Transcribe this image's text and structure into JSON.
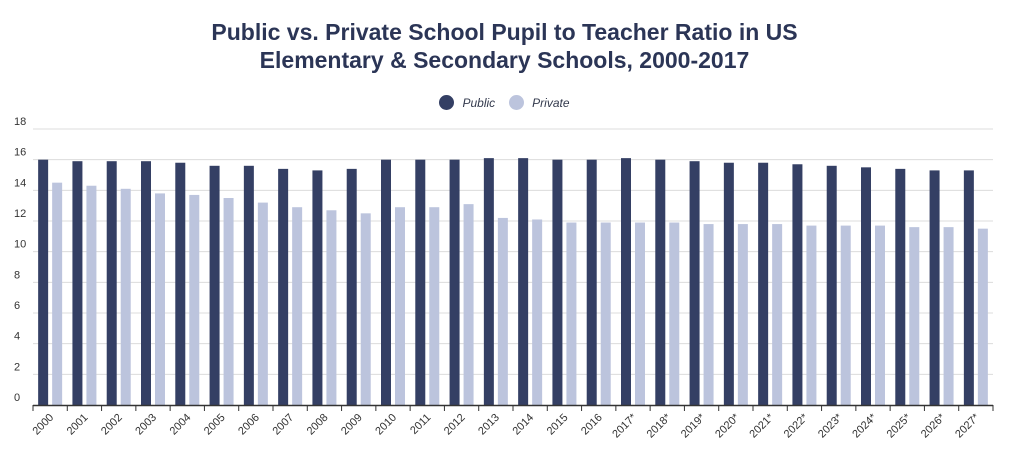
{
  "chart_data": {
    "type": "bar",
    "title_line1": "Public vs. Private School Pupil to Teacher Ratio in US",
    "title_line2": "Elementary & Secondary Schools, 2000-2017",
    "xlabel": "",
    "ylabel": "",
    "ylim": [
      0,
      18
    ],
    "yticks": [
      0,
      2,
      4,
      6,
      8,
      10,
      12,
      14,
      16,
      18
    ],
    "grid": true,
    "legend_placement": "top-center",
    "categories": [
      "2000",
      "2001",
      "2002",
      "2003",
      "2004",
      "2005",
      "2006",
      "2007",
      "2008",
      "2009",
      "2010",
      "2011",
      "2012",
      "2013",
      "2014",
      "2015",
      "2016",
      "2017*",
      "2018*",
      "2019*",
      "2020*",
      "2021*",
      "2022*",
      "2023*",
      "2024*",
      "2025*",
      "2026*",
      "2027*"
    ],
    "series": [
      {
        "name": "Public",
        "color": "#343f64",
        "values": [
          16.0,
          15.9,
          15.9,
          15.9,
          15.8,
          15.6,
          15.6,
          15.4,
          15.3,
          15.4,
          16.0,
          16.0,
          16.0,
          16.1,
          16.1,
          16.0,
          16.0,
          16.1,
          16.0,
          15.9,
          15.8,
          15.8,
          15.7,
          15.6,
          15.5,
          15.4,
          15.3,
          15.3
        ]
      },
      {
        "name": "Private",
        "color": "#bcc4dd",
        "values": [
          14.5,
          14.3,
          14.1,
          13.8,
          13.7,
          13.5,
          13.2,
          12.9,
          12.7,
          12.5,
          12.9,
          12.9,
          13.1,
          12.2,
          12.1,
          11.9,
          11.9,
          11.9,
          11.9,
          11.8,
          11.8,
          11.8,
          11.7,
          11.7,
          11.7,
          11.6,
          11.6,
          11.5
        ]
      }
    ]
  }
}
